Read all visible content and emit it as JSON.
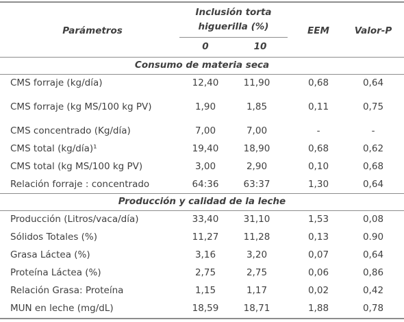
{
  "header": {
    "parameters": "Parámetros",
    "inclusion": "Inclusión torta higuerilla (%)",
    "levels": [
      "0",
      "10"
    ],
    "eem": "EEM",
    "p_value": "Valor-P"
  },
  "sections": [
    {
      "title": "Consumo de materia seca",
      "rows": [
        [
          "CMS forraje (kg/día)",
          "12,40",
          "11,90",
          "0,68",
          "0,64"
        ],
        [
          "CMS forraje (kg MS/100 kg PV)",
          "1,90",
          "1,85",
          "0,11",
          "0,75"
        ],
        [
          "CMS concentrado (Kg/día)",
          "7,00",
          "7,00",
          "-",
          "-"
        ],
        [
          "CMS total (kg/día)¹",
          "19,40",
          "18,90",
          "0,68",
          "0,62"
        ],
        [
          "CMS total (kg MS/100 kg PV)",
          "3,00",
          "2,90",
          "0,10",
          "0,68"
        ],
        [
          "Relación forraje : concentrado",
          "64:36",
          "63:37",
          "1,30",
          "0,64"
        ]
      ]
    },
    {
      "title": "Producción y calidad de la leche",
      "rows": [
        [
          "Producción (Litros/vaca/día)",
          "33,40",
          "31,10",
          "1,53",
          "0,08"
        ],
        [
          "Sólidos Totales (%)",
          "11,27",
          "11,28",
          "0,13",
          "0.90"
        ],
        [
          "Grasa Láctea (%)",
          "3,16",
          "3,20",
          "0,07",
          "0,64"
        ],
        [
          "Proteína Láctea (%)",
          "2,75",
          "2,75",
          "0,06",
          "0,86"
        ],
        [
          "Relación Grasa: Proteína",
          "1,15",
          "1,17",
          "0,02",
          "0,42"
        ],
        [
          "MUN en leche (mg/dL)",
          "18,59",
          "18,71",
          "1,88",
          "0,78"
        ]
      ]
    }
  ]
}
